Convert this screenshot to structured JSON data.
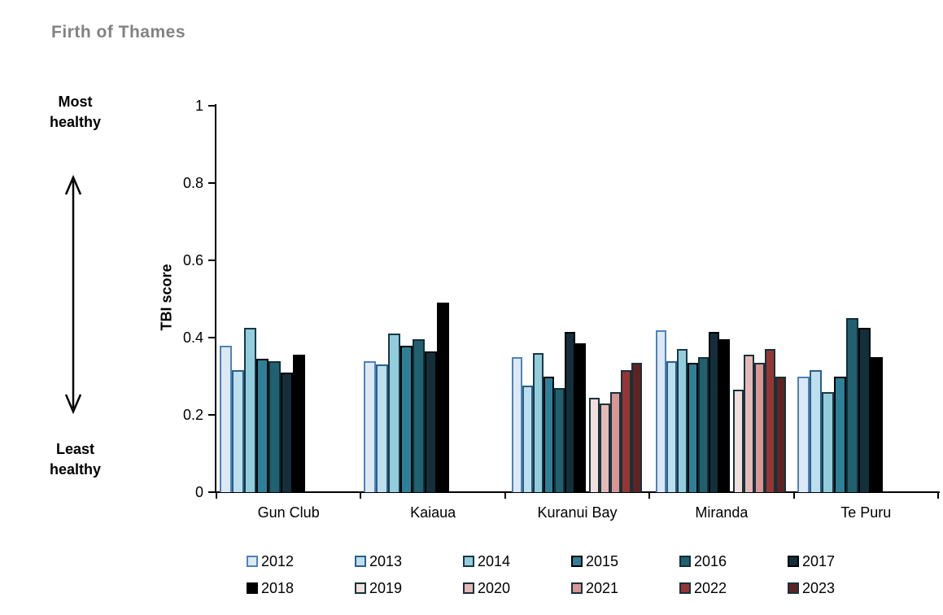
{
  "page_title": "Firth of Thames",
  "annotations": {
    "most_line1": "Most",
    "most_line2": "healthy",
    "least_line1": "Least",
    "least_line2": "healthy"
  },
  "chart_data": {
    "type": "bar",
    "title": "Firth of Thames",
    "xlabel": "",
    "ylabel": "TBI score",
    "ylim": [
      0,
      1
    ],
    "yticks": [
      "0",
      "0.2",
      "0.4",
      "0.6",
      "0.8",
      "1"
    ],
    "grid": false,
    "legend_position": "bottom",
    "categories": [
      "Gun Club",
      "Kaiaua",
      "Kuranui Bay",
      "Miranda",
      "Te Puru"
    ],
    "series": [
      {
        "name": "2012",
        "fill": "#DCE9F5",
        "border": "#4F81BD",
        "values": [
          0.38,
          0.34,
          0.35,
          0.42,
          0.3
        ]
      },
      {
        "name": "2013",
        "fill": "#BDDEEB",
        "border": "#2A5F8C",
        "values": [
          0.315,
          0.33,
          0.275,
          0.34,
          0.315
        ]
      },
      {
        "name": "2014",
        "fill": "#92CDDC",
        "border": "#1A3844",
        "values": [
          0.425,
          0.41,
          0.36,
          0.37,
          0.26
        ]
      },
      {
        "name": "2015",
        "fill": "#2E8099",
        "border": "#000000",
        "values": [
          0.345,
          0.38,
          0.3,
          0.335,
          0.3
        ]
      },
      {
        "name": "2016",
        "fill": "#20606F",
        "border": "#122E38",
        "values": [
          0.34,
          0.395,
          0.27,
          0.35,
          0.45
        ]
      },
      {
        "name": "2017",
        "fill": "#132F3A",
        "border": "#000000",
        "values": [
          0.31,
          0.365,
          0.415,
          0.415,
          0.425
        ]
      },
      {
        "name": "2018",
        "fill": "#000000",
        "border": "#000000",
        "values": [
          0.355,
          0.49,
          0.385,
          0.395,
          0.35
        ]
      },
      {
        "name": "2019",
        "fill": "#F2DEDD",
        "border": "#17323B",
        "values": [
          null,
          null,
          0.245,
          0.265,
          null
        ]
      },
      {
        "name": "2020",
        "fill": "#E5B9B7",
        "border": "#17323B",
        "values": [
          null,
          null,
          0.23,
          0.355,
          null
        ]
      },
      {
        "name": "2021",
        "fill": "#D99694",
        "border": "#17323B",
        "values": [
          null,
          null,
          0.26,
          0.335,
          null
        ]
      },
      {
        "name": "2022",
        "fill": "#943734",
        "border": "#17323B",
        "values": [
          null,
          null,
          0.315,
          0.37,
          null
        ]
      },
      {
        "name": "2023",
        "fill": "#5E2322",
        "border": "#17323B",
        "values": [
          null,
          null,
          0.335,
          0.3,
          null
        ]
      }
    ]
  }
}
